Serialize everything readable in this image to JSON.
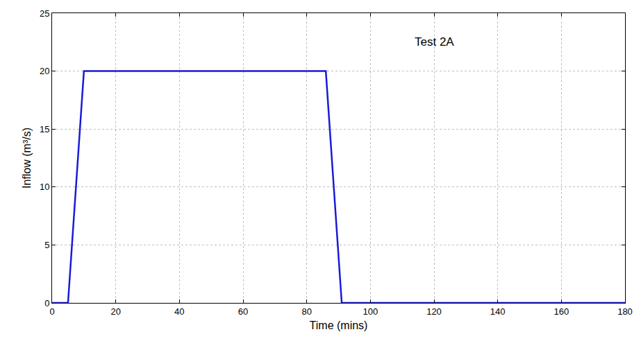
{
  "chart_data": {
    "type": "line",
    "x_label": "Time (mins)",
    "y_label": "Inflow (m³/s)",
    "x": [
      0,
      5,
      10,
      86,
      91,
      180
    ],
    "series": [
      {
        "name": "Test 2A",
        "color": "#1a1ad6",
        "values": [
          0,
          0,
          20,
          20,
          0,
          0
        ],
        "line_style": "solid"
      }
    ],
    "xlim": [
      0,
      180
    ],
    "xticks": [
      0,
      20,
      40,
      60,
      80,
      100,
      120,
      140,
      160,
      180
    ],
    "ylim": [
      0,
      25
    ],
    "yticks": [
      0,
      5,
      10,
      15,
      20,
      25
    ],
    "grid": true,
    "annotations": [
      {
        "text": "Test 2A",
        "x": 120,
        "y": 22.5
      }
    ]
  }
}
